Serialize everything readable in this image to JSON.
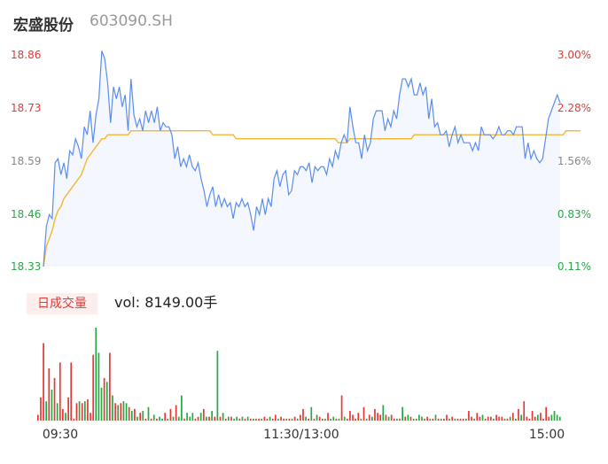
{
  "header": {
    "stock_name": "宏盛股份",
    "stock_code": "603090.SH"
  },
  "volume_panel": {
    "tag_label": "日成交量",
    "vol_prefix": "vol: ",
    "vol_value": "8149.00",
    "vol_unit": "手"
  },
  "colors": {
    "price_line": "#5b8def",
    "avg_line": "#f5b731",
    "area_fill": "#f4f7fd",
    "up": "#e53935",
    "down": "#27a844",
    "neutral": "#888888"
  },
  "chart_data": {
    "type": "line",
    "y_left_ticks": [
      "18.86",
      "18.73",
      "18.59",
      "18.46",
      "18.33"
    ],
    "y_right_ticks": [
      "3.00%",
      "2.28%",
      "1.56%",
      "0.83%",
      "0.11%"
    ],
    "x_ticks": [
      "09:30",
      "11:30/13:00",
      "15:00"
    ],
    "ylim": [
      18.33,
      18.86
    ],
    "series": [
      {
        "key": "price",
        "values": [
          18.33,
          18.43,
          18.46,
          18.45,
          18.59,
          18.6,
          18.56,
          18.59,
          18.55,
          18.62,
          18.61,
          18.65,
          18.63,
          18.6,
          18.68,
          18.66,
          18.72,
          18.64,
          18.71,
          18.75,
          18.87,
          18.85,
          18.79,
          18.69,
          18.78,
          18.75,
          18.78,
          18.73,
          18.76,
          18.67,
          18.8,
          18.71,
          18.68,
          18.7,
          18.67,
          18.72,
          18.69,
          18.72,
          18.69,
          18.73,
          18.67,
          18.69,
          18.68,
          18.68,
          18.66,
          18.6,
          18.63,
          18.58,
          18.6,
          18.58,
          18.61,
          18.58,
          18.57,
          18.59,
          18.55,
          18.52,
          18.48,
          18.51,
          18.53,
          18.48,
          18.51,
          18.48,
          18.5,
          18.48,
          18.49,
          18.45,
          18.49,
          18.48,
          18.5,
          18.48,
          18.49,
          18.46,
          18.42,
          18.48,
          18.46,
          18.5,
          18.46,
          18.5,
          18.48,
          18.55,
          18.57,
          18.53,
          18.56,
          18.57,
          18.51,
          18.52,
          18.57,
          18.56,
          18.58,
          18.58,
          18.57,
          18.59,
          18.54,
          18.58,
          18.57,
          18.58,
          18.58,
          18.56,
          18.6,
          18.58,
          18.62,
          18.6,
          18.64,
          18.66,
          18.64,
          18.73,
          18.68,
          18.64,
          18.64,
          18.6,
          18.66,
          18.62,
          18.64,
          18.7,
          18.72,
          18.72,
          18.72,
          18.67,
          18.7,
          18.68,
          18.72,
          18.7,
          18.76,
          18.8,
          18.8,
          18.78,
          18.8,
          18.76,
          18.76,
          18.79,
          18.76,
          18.78,
          18.7,
          18.75,
          18.68,
          18.69,
          18.66,
          18.66,
          18.67,
          18.63,
          18.66,
          18.68,
          18.64,
          18.66,
          18.64,
          18.64,
          18.64,
          18.62,
          18.64,
          18.62,
          18.68,
          18.66,
          18.66,
          18.66,
          18.65,
          18.66,
          18.68,
          18.66,
          18.66,
          18.67,
          18.67,
          18.66,
          18.68,
          18.68,
          18.68,
          18.6,
          18.64,
          18.6,
          18.62,
          18.6,
          18.59,
          18.6,
          18.65,
          18.7,
          18.72,
          18.74,
          18.76,
          18.74
        ],
        "color_key": "price_line"
      },
      {
        "key": "avg",
        "values": [
          18.33,
          18.38,
          18.4,
          18.42,
          18.45,
          18.47,
          18.48,
          18.5,
          18.51,
          18.52,
          18.53,
          18.54,
          18.55,
          18.56,
          18.58,
          18.6,
          18.61,
          18.62,
          18.63,
          18.64,
          18.65,
          18.65,
          18.66,
          18.66,
          18.66,
          18.66,
          18.66,
          18.66,
          18.66,
          18.66,
          18.67,
          18.67,
          18.67,
          18.67,
          18.67,
          18.67,
          18.67,
          18.67,
          18.67,
          18.67,
          18.67,
          18.67,
          18.67,
          18.67,
          18.67,
          18.67,
          18.67,
          18.67,
          18.67,
          18.67,
          18.67,
          18.67,
          18.67,
          18.67,
          18.67,
          18.67,
          18.67,
          18.67,
          18.66,
          18.66,
          18.66,
          18.66,
          18.66,
          18.66,
          18.66,
          18.66,
          18.65,
          18.65,
          18.65,
          18.65,
          18.65,
          18.65,
          18.65,
          18.65,
          18.65,
          18.65,
          18.65,
          18.65,
          18.65,
          18.65,
          18.65,
          18.65,
          18.65,
          18.65,
          18.65,
          18.65,
          18.65,
          18.65,
          18.65,
          18.65,
          18.65,
          18.65,
          18.65,
          18.65,
          18.65,
          18.65,
          18.65,
          18.65,
          18.65,
          18.65,
          18.65,
          18.64,
          18.64,
          18.64,
          18.64,
          18.65,
          18.65,
          18.65,
          18.65,
          18.65,
          18.65,
          18.65,
          18.65,
          18.65,
          18.65,
          18.65,
          18.65,
          18.65,
          18.65,
          18.65,
          18.65,
          18.65,
          18.65,
          18.65,
          18.65,
          18.65,
          18.65,
          18.66,
          18.66,
          18.66,
          18.66,
          18.66,
          18.66,
          18.66,
          18.66,
          18.66,
          18.66,
          18.66,
          18.66,
          18.66,
          18.66,
          18.66,
          18.66,
          18.66,
          18.66,
          18.66,
          18.66,
          18.66,
          18.66,
          18.66,
          18.66,
          18.66,
          18.66,
          18.66,
          18.66,
          18.66,
          18.66,
          18.66,
          18.66,
          18.66,
          18.66,
          18.66,
          18.66,
          18.66,
          18.66,
          18.66,
          18.66,
          18.66,
          18.66,
          18.66,
          18.66,
          18.66,
          18.66,
          18.66,
          18.66,
          18.66,
          18.66,
          18.66,
          18.66,
          18.67,
          18.67,
          18.67,
          18.67,
          18.67,
          18.67
        ],
        "color_key": "avg_line"
      }
    ],
    "volume": {
      "values": [
        3,
        12,
        40,
        10,
        27,
        16,
        22,
        9,
        30,
        6,
        4,
        12,
        30,
        1,
        9,
        10,
        9,
        10,
        11,
        4,
        34,
        48,
        35,
        17,
        22,
        20,
        35,
        13,
        9,
        8,
        9,
        10,
        9,
        7,
        5,
        6,
        2,
        4,
        5,
        1,
        7,
        1,
        3,
        1,
        2,
        1,
        4,
        1,
        6,
        2,
        8,
        2,
        13,
        1,
        4,
        2,
        4,
        1,
        2,
        4,
        6,
        2,
        2,
        5,
        2,
        36,
        2,
        4,
        1,
        2,
        2,
        1,
        2,
        1,
        2,
        1,
        2,
        1,
        1,
        1,
        1,
        1,
        2,
        1,
        2,
        1,
        3,
        1,
        2,
        1,
        1,
        1,
        1,
        2,
        1,
        3,
        6,
        2,
        1,
        7,
        1,
        3,
        2,
        1,
        1,
        4,
        1,
        2,
        1,
        1,
        13,
        2,
        1,
        5,
        3,
        1,
        4,
        1,
        7,
        1,
        3,
        2,
        6,
        4,
        3,
        8,
        3,
        2,
        3,
        1,
        1,
        1,
        7,
        2,
        3,
        2,
        1,
        1,
        3,
        2,
        1,
        2,
        1,
        1,
        3,
        1,
        1,
        1,
        3,
        1,
        2,
        1,
        1,
        1,
        1,
        1,
        5,
        2,
        1,
        4,
        2,
        3,
        1,
        2,
        2,
        1,
        3,
        2,
        2,
        1,
        1,
        2,
        4,
        1,
        6,
        3,
        10,
        2,
        1,
        5,
        2,
        3,
        4,
        1,
        7,
        2,
        3,
        5,
        3,
        2
      ],
      "directions": [
        "u",
        "u",
        "u",
        "d",
        "u",
        "d",
        "u",
        "d",
        "u",
        "u",
        "d",
        "u",
        "u",
        "u",
        "u",
        "d",
        "u",
        "d",
        "u",
        "u",
        "u",
        "d",
        "d",
        "d",
        "u",
        "d",
        "u",
        "d",
        "u",
        "d",
        "u",
        "d",
        "d",
        "u",
        "d",
        "u",
        "d",
        "u",
        "d",
        "u",
        "d",
        "u",
        "d",
        "u",
        "d",
        "d",
        "u",
        "d",
        "u",
        "d",
        "u",
        "d",
        "d",
        "u",
        "d",
        "d",
        "d",
        "u",
        "u",
        "d",
        "u",
        "d",
        "u",
        "d",
        "u",
        "d",
        "u",
        "d",
        "u",
        "d",
        "u",
        "d",
        "d",
        "u",
        "d",
        "u",
        "d",
        "u",
        "d",
        "u",
        "u",
        "d",
        "u",
        "u",
        "d",
        "u",
        "u",
        "d",
        "u",
        "u",
        "d",
        "u",
        "d",
        "u",
        "d",
        "u",
        "u",
        "d",
        "u",
        "d",
        "u",
        "d",
        "u",
        "u",
        "d",
        "u",
        "d",
        "d",
        "u",
        "d",
        "u",
        "d",
        "u",
        "u",
        "u",
        "u",
        "u",
        "d",
        "u",
        "d",
        "u",
        "d",
        "u",
        "u",
        "u",
        "d",
        "u",
        "d",
        "u",
        "u",
        "d",
        "u",
        "d",
        "u",
        "d",
        "u",
        "d",
        "u",
        "d",
        "d",
        "u",
        "u",
        "d",
        "u",
        "d",
        "u",
        "d",
        "u",
        "u",
        "d",
        "u",
        "d",
        "u",
        "u",
        "u",
        "d",
        "u",
        "u",
        "d",
        "u",
        "u",
        "d",
        "u",
        "u",
        "u",
        "d",
        "u",
        "u",
        "u",
        "d",
        "u",
        "d",
        "u",
        "d",
        "u",
        "d",
        "u",
        "u",
        "u",
        "u",
        "u",
        "d",
        "u",
        "u",
        "u",
        "u"
      ]
    }
  }
}
